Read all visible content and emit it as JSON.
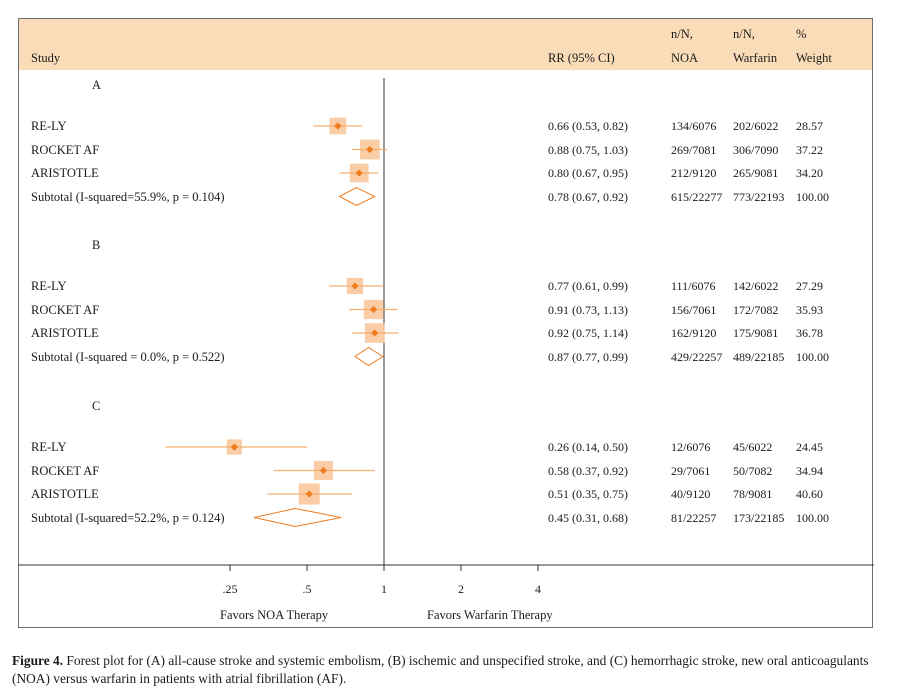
{
  "chart_data": {
    "type": "forest",
    "header": {
      "study": "Study",
      "rr": "RR (95% CI)",
      "noa": [
        "n/N,",
        "NOA"
      ],
      "warfarin": [
        "n/N,",
        "Warfarin"
      ],
      "weight": [
        "%",
        "Weight"
      ]
    },
    "x_scale": "log",
    "x_ticks": [
      {
        "label": ".25",
        "value": 0.25
      },
      {
        "label": ".5",
        "value": 0.5
      },
      {
        "label": "1",
        "value": 1
      },
      {
        "label": "2",
        "value": 2
      },
      {
        "label": "4",
        "value": 4
      }
    ],
    "favors_left": "Favors NOA Therapy",
    "favors_right": "Favors Warfarin Therapy",
    "groups": [
      {
        "label": "A",
        "studies": [
          {
            "name": "RE-LY",
            "rr": 0.66,
            "lo": 0.53,
            "hi": 0.82,
            "rr_text": "0.66 (0.53, 0.82)",
            "noa": "134/6076",
            "warfarin": "202/6022",
            "weight": "28.57"
          },
          {
            "name": "ROCKET AF",
            "rr": 0.88,
            "lo": 0.75,
            "hi": 1.03,
            "rr_text": "0.88 (0.75, 1.03)",
            "noa": "269/7081",
            "warfarin": "306/7090",
            "weight": "37.22"
          },
          {
            "name": "ARISTOTLE",
            "rr": 0.8,
            "lo": 0.67,
            "hi": 0.95,
            "rr_text": "0.80 (0.67, 0.95)",
            "noa": "212/9120",
            "warfarin": "265/9081",
            "weight": "34.20"
          }
        ],
        "subtotal": {
          "name": "Subtotal (I-squared=55.9%, p = 0.104)",
          "rr": 0.78,
          "lo": 0.67,
          "hi": 0.92,
          "rr_text": "0.78 (0.67, 0.92)",
          "noa": "615/22277",
          "warfarin": "773/22193",
          "weight": "100.00"
        }
      },
      {
        "label": "B",
        "studies": [
          {
            "name": "RE-LY",
            "rr": 0.77,
            "lo": 0.61,
            "hi": 0.99,
            "rr_text": "0.77 (0.61, 0.99)",
            "noa": "111/6076",
            "warfarin": "142/6022",
            "weight": "27.29"
          },
          {
            "name": "ROCKET AF",
            "rr": 0.91,
            "lo": 0.73,
            "hi": 1.13,
            "rr_text": "0.91 (0.73, 1.13)",
            "noa": "156/7061",
            "warfarin": "172/7082",
            "weight": "35.93"
          },
          {
            "name": "ARISTOTLE",
            "rr": 0.92,
            "lo": 0.75,
            "hi": 1.14,
            "rr_text": "0.92 (0.75, 1.14)",
            "noa": "162/9120",
            "warfarin": "175/9081",
            "weight": "36.78"
          }
        ],
        "subtotal": {
          "name": "Subtotal (I-squared = 0.0%, p = 0.522)",
          "rr": 0.87,
          "lo": 0.77,
          "hi": 0.99,
          "rr_text": "0.87 (0.77, 0.99)",
          "noa": "429/22257",
          "warfarin": "489/22185",
          "weight": "100.00"
        }
      },
      {
        "label": "C",
        "studies": [
          {
            "name": "RE-LY",
            "rr": 0.26,
            "lo": 0.14,
            "hi": 0.5,
            "rr_text": "0.26 (0.14, 0.50)",
            "noa": "12/6076",
            "warfarin": "45/6022",
            "weight": "24.45"
          },
          {
            "name": "ROCKET AF",
            "rr": 0.58,
            "lo": 0.37,
            "hi": 0.92,
            "rr_text": "0.58 (0.37, 0.92)",
            "noa": "29/7061",
            "warfarin": "50/7082",
            "weight": "34.94"
          },
          {
            "name": "ARISTOTLE",
            "rr": 0.51,
            "lo": 0.35,
            "hi": 0.75,
            "rr_text": "0.51 (0.35, 0.75)",
            "noa": "40/9120",
            "warfarin": "78/9081",
            "weight": "40.60"
          }
        ],
        "subtotal": {
          "name": "Subtotal (I-squared=52.2%, p = 0.124)",
          "rr": 0.45,
          "lo": 0.31,
          "hi": 0.68,
          "rr_text": "0.45 (0.31, 0.68)",
          "noa": "81/22257",
          "warfarin": "173/22185",
          "weight": "100.00"
        }
      }
    ],
    "colors": {
      "header_band": "#fbdcb8",
      "ci_line": "#f5b070",
      "weight_box": "#f9c89c",
      "point": "#f07c20",
      "diamond": "#f07c20",
      "axis": "#333333"
    }
  },
  "caption": {
    "label": "Figure 4.",
    "text": " Forest plot for (A) all-cause stroke and systemic embolism, (B) ischemic and unspecified stroke, and (C) hemorrhagic stroke, new oral anticoagulants (NOA) versus warfarin in patients with atrial fibrillation (AF)."
  }
}
